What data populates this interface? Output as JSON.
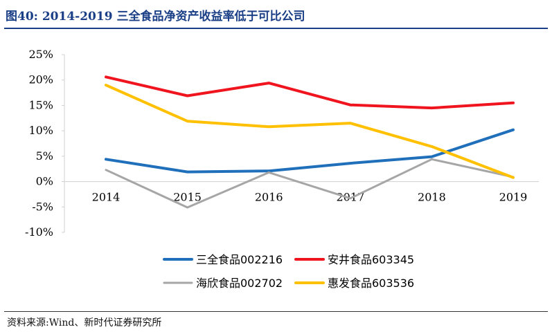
{
  "header": {
    "figure_title": "图40:    2014-2019 三全食品净资产收益率低于可比公司"
  },
  "source": {
    "text": "资料来源:Wind、新时代证券研究所"
  },
  "chart_data": {
    "type": "line",
    "categories": [
      "2014",
      "2015",
      "2016",
      "2017",
      "2018",
      "2019"
    ],
    "y_ticks": [
      "25%",
      "20%",
      "15%",
      "10%",
      "5%",
      "0%",
      "-5%",
      "-10%"
    ],
    "ylim": [
      -10,
      25
    ],
    "y_unit": "%",
    "grid": false,
    "legend_position": "bottom",
    "series": [
      {
        "name": "三全食品002216",
        "color": "#1f6fba",
        "values": [
          4.4,
          1.9,
          2.1,
          3.6,
          4.9,
          10.2
        ]
      },
      {
        "name": "安井食品603345",
        "color": "#f0141e",
        "values": [
          20.6,
          16.9,
          19.4,
          15.1,
          14.5,
          15.5
        ]
      },
      {
        "name": "海欣食品002702",
        "color": "#a6a6a6",
        "values": [
          2.3,
          -5.1,
          1.8,
          -3.3,
          4.4,
          0.9
        ]
      },
      {
        "name": "惠发食品603536",
        "color": "#ffc000",
        "values": [
          19.0,
          11.9,
          10.8,
          11.5,
          6.9,
          0.8
        ]
      }
    ]
  }
}
